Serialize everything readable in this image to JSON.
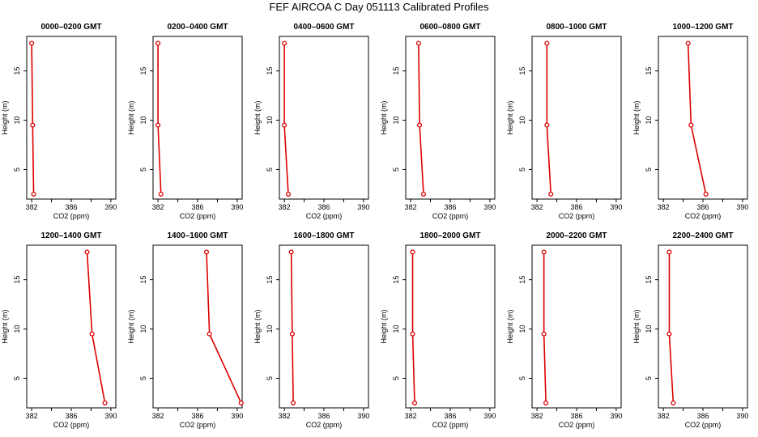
{
  "title": "FEF AIRCOA C  Day 051113  Calibrated Profiles",
  "colors": {
    "line": "#dd0000",
    "axis": "#000000"
  },
  "chart_data": {
    "type": "line",
    "xlabel": "CO2 (ppm)",
    "ylabel": "Height (m)",
    "xlim": [
      381.5,
      390.5
    ],
    "ylim": [
      2.0,
      18.5
    ],
    "xticks": [
      382,
      386,
      390
    ],
    "yticks": [
      5,
      10,
      15
    ],
    "xtick_labels": [
      "382",
      "386",
      "390"
    ],
    "ytick_labels": [
      "5",
      "10",
      "15"
    ],
    "heights": [
      2.5,
      9.5,
      17.8
    ],
    "panels": [
      {
        "title": "0000–0200 GMT",
        "values": [
          382.2,
          382.1,
          382.0
        ]
      },
      {
        "title": "0200–0400 GMT",
        "values": [
          382.3,
          382.0,
          382.0
        ]
      },
      {
        "title": "0400–0600 GMT",
        "values": [
          382.4,
          382.0,
          382.0
        ]
      },
      {
        "title": "0600–0800 GMT",
        "values": [
          383.3,
          382.9,
          382.8
        ]
      },
      {
        "title": "0800–1000 GMT",
        "values": [
          383.4,
          383.0,
          383.0
        ]
      },
      {
        "title": "1000–1200 GMT",
        "values": [
          386.3,
          384.8,
          384.5
        ]
      },
      {
        "title": "1200–1400 GMT",
        "values": [
          389.4,
          388.1,
          387.6
        ]
      },
      {
        "title": "1400–1600 GMT",
        "values": [
          390.4,
          387.2,
          386.9
        ]
      },
      {
        "title": "1600–1800 GMT",
        "values": [
          382.9,
          382.8,
          382.7
        ]
      },
      {
        "title": "1800–2000 GMT",
        "values": [
          382.4,
          382.2,
          382.2
        ]
      },
      {
        "title": "2000–2200 GMT",
        "values": [
          382.9,
          382.7,
          382.7
        ]
      },
      {
        "title": "2200–2400 GMT",
        "values": [
          383.0,
          382.6,
          382.6
        ]
      }
    ]
  }
}
